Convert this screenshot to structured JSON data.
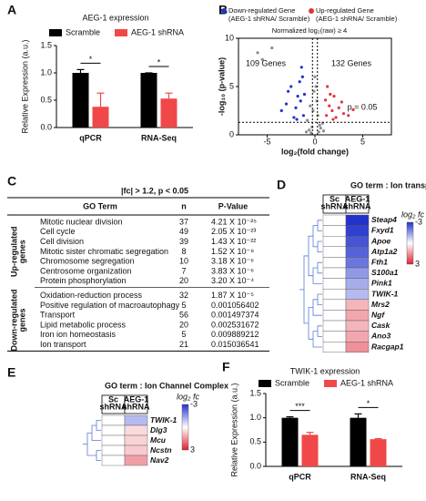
{
  "chart_data": [
    {
      "type": "bar",
      "panel_label": "A",
      "title": "AEG-1 expression",
      "y_label": "Relative Expression (a.u.)",
      "categories": [
        "qPCR",
        "RNA-Seq"
      ],
      "series": [
        {
          "name": "Scramble",
          "color": "#000000",
          "values": [
            1.0,
            1.0
          ],
          "errors": [
            0.06,
            0
          ]
        },
        {
          "name": "AEG-1 shRNA",
          "color": "#f04848",
          "values": [
            0.38,
            0.53
          ],
          "errors": [
            0.25,
            0.1
          ]
        }
      ],
      "annotations": [
        "*",
        "*"
      ],
      "ylim": [
        0,
        1.5
      ],
      "yticks": [
        {
          "value": 0,
          "label": "0.0"
        },
        {
          "value": 0.5,
          "label": "0.5"
        },
        {
          "value": 1,
          "label": "1.0"
        },
        {
          "value": 1.5,
          "label": "1.5"
        }
      ]
    },
    {
      "type": "scatter",
      "panel_label": "B",
      "subtitle": "Normalized log₂(raw) ≥ 4",
      "x_label": "log₂(fold change)",
      "y_label": "-log₁₀ (p-value)",
      "series": [
        {
          "color": "#8c8c8c",
          "x": [
            -0.8,
            -0.5,
            -0.3,
            -0.1,
            0.1,
            0.3,
            0.5,
            0.8,
            -0.6,
            0.6,
            -0.2,
            0.2,
            0,
            -0.9,
            0.9,
            -6,
            -5.5,
            -4.5,
            -0.4,
            0.4
          ],
          "y": [
            1.5,
            3,
            0.8,
            4.5,
            5,
            2,
            1,
            1.2,
            0.5,
            0.7,
            2.5,
            3.5,
            6,
            0.3,
            0.4,
            8.5,
            7.8,
            9,
            0.2,
            0.3
          ]
        },
        {
          "name": "Down-regulated Gene",
          "note": "(AEG-1 shRNA/ Scramble)",
          "color": "#1f35c8",
          "x": [
            -1.2,
            -1.5,
            -1.8,
            -2,
            -2.5,
            -3,
            -1.3,
            -1.6,
            -2.2,
            -1.1,
            -3.5,
            -1.4,
            -2.8,
            -1.9
          ],
          "y": [
            2,
            3.5,
            4,
            2.8,
            5,
            3.2,
            6,
            5.5,
            1.8,
            4.2,
            2.5,
            7,
            4.5,
            1.6
          ]
        },
        {
          "name": "Up-regulated Gene",
          "note": "(AEG-1 shRNA/ Scramble)",
          "color": "#e4343a",
          "x": [
            1.2,
            1.5,
            1.8,
            2,
            2.5,
            3,
            1.3,
            1.6,
            2.2,
            1.1,
            3.5,
            4,
            2.8,
            1.9
          ],
          "y": [
            2,
            3,
            2.5,
            4,
            2.8,
            2.2,
            5,
            4.2,
            1.8,
            3.6,
            2,
            2.6,
            3.4,
            1.6
          ]
        }
      ],
      "annotations": [
        "109 Genes",
        "132 Genes",
        "p = 0.05"
      ],
      "hlines": [
        1.3
      ],
      "vlines": [
        -0.26,
        0.26
      ],
      "xlim": [
        -8,
        8
      ],
      "xticks": [
        -5,
        0,
        5
      ],
      "ylim": [
        0,
        10
      ],
      "yticks": [
        0,
        5,
        10
      ]
    },
    {
      "type": "heatmap",
      "panel_label": "D",
      "title": "GO term : Ion transport",
      "columns": [
        [
          "Sc",
          "shRNA"
        ],
        [
          "AEG-1",
          "shRNA"
        ]
      ],
      "rows": [
        "Steap4",
        "Fxyd1",
        "Apoe",
        "Atp1a2",
        "Fth1",
        "S100a1",
        "Pink1",
        "TWIK-1",
        "Mrs2",
        "Ngf",
        "Cask",
        "Ano3",
        "Racgap1"
      ],
      "values": [
        [
          0,
          -3
        ],
        [
          0,
          -2.8
        ],
        [
          0,
          -2.5
        ],
        [
          0,
          -2.3
        ],
        [
          0,
          -2
        ],
        [
          0,
          -1.5
        ],
        [
          0,
          -1.2
        ],
        [
          0,
          -1
        ],
        [
          0,
          1
        ],
        [
          0,
          1.2
        ],
        [
          0,
          1
        ],
        [
          0,
          1.2
        ],
        [
          0,
          1.5
        ]
      ],
      "colorbar": {
        "label": "log₂ fc",
        "lim": [
          -3,
          3
        ],
        "ticks": [
          -3,
          3
        ],
        "colors": [
          "#2233cc",
          "#ffffff",
          "#dd2233"
        ]
      }
    },
    {
      "type": "heatmap",
      "panel_label": "E",
      "title": "GO term : Ion Channel Complex",
      "columns": [
        [
          "Sc",
          "shRNA"
        ],
        [
          "AEG-1",
          "shRNA"
        ]
      ],
      "rows": [
        "TWIK-1",
        "Dlg3",
        "Mcu",
        "Ncstn",
        "Nav2"
      ],
      "values": [
        [
          0,
          -1
        ],
        [
          0,
          0.5
        ],
        [
          0,
          0.6
        ],
        [
          0,
          0.7
        ],
        [
          0,
          1.3
        ]
      ],
      "colorbar": {
        "label": "log₂ fc",
        "lim": [
          -3,
          3
        ],
        "ticks": [
          -3,
          3
        ],
        "colors": [
          "#2233cc",
          "#ffffff",
          "#dd2233"
        ]
      }
    },
    {
      "type": "bar",
      "panel_label": "F",
      "title": "TWIK-1 expression",
      "y_label": "Relative Expression (a.u.)",
      "categories": [
        "qPCR",
        "RNA-Seq"
      ],
      "series": [
        {
          "name": "Scramble",
          "color": "#000000",
          "values": [
            1.0,
            1.0
          ],
          "errors": [
            0.02,
            0.08
          ]
        },
        {
          "name": "AEG-1 shRNA",
          "color": "#f04848",
          "values": [
            0.65,
            0.56
          ],
          "errors": [
            0.05,
            0.01
          ]
        }
      ],
      "annotations": [
        "***",
        "*"
      ],
      "ylim": [
        0,
        1.5
      ],
      "yticks": [
        {
          "value": 0,
          "label": "0.0"
        },
        {
          "value": 0.5,
          "label": "0.5"
        },
        {
          "value": 1,
          "label": "1.0"
        },
        {
          "value": 1.5,
          "label": "1.5"
        }
      ]
    }
  ],
  "table": {
    "panel_label": "C",
    "header": "|fc| > 1.2, p < 0.05",
    "columns": [
      "GO Term",
      "n",
      "P-Value"
    ],
    "groups": [
      {
        "label": [
          "Up-regulated",
          "genes"
        ],
        "rows": [
          [
            "Mitotic nuclear division",
            37,
            "4.21 X 10⁻²⁵"
          ],
          [
            "Cell cycle",
            49,
            "2.05 X 10⁻²³"
          ],
          [
            "Cell division",
            39,
            "1.43 X 10⁻²²"
          ],
          [
            "Mitotic sister chromatic segregation",
            8,
            "1.52 X 10⁻⁸"
          ],
          [
            "Chromosome segregation",
            10,
            "3.18 X 10⁻⁶"
          ],
          [
            "Centrosome organization",
            7,
            "3.83 X 10⁻⁶"
          ],
          [
            "Protein phosphorylation",
            20,
            "3.20 X 10⁻⁴"
          ]
        ]
      },
      {
        "label": [
          "Down-regulated",
          "genes"
        ],
        "rows": [
          [
            "Oxidation-reduction process",
            32,
            "1.87 X 10⁻⁵"
          ],
          [
            "Positive regulation of macroautophagy",
            5,
            "0.001056402"
          ],
          [
            "Transport",
            56,
            "0.001497374"
          ],
          [
            "Lipid metabolic process",
            20,
            "0.002531672"
          ],
          [
            "Iron ion homeostasis",
            5,
            "0.009889212"
          ],
          [
            "Ion transport",
            21,
            "0.015036541"
          ]
        ]
      }
    ]
  }
}
